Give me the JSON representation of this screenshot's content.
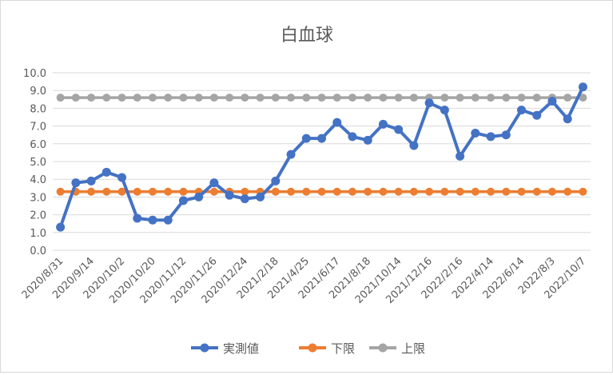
{
  "chart_data": {
    "type": "line",
    "title": "白血球",
    "xlabel": "",
    "ylabel": "",
    "ylim": [
      0,
      10
    ],
    "yticks": [
      "0.0",
      "1.0",
      "2.0",
      "3.0",
      "4.0",
      "5.0",
      "6.0",
      "7.0",
      "8.0",
      "9.0",
      "10.0"
    ],
    "x_tick_labels": [
      "2020/8/31",
      "2020/9/14",
      "2020/10/2",
      "2020/10/20",
      "2020/11/12",
      "2020/11/26",
      "2020/12/24",
      "2021/2/18",
      "2021/4/25",
      "2021/6/17",
      "2021/8/18",
      "2021/10/14",
      "2021/12/16",
      "2022/2/16",
      "2022/4/14",
      "2022/6/14",
      "2022/8/3",
      "2022/10/7"
    ],
    "x_tick_every": 2,
    "grid": true,
    "legend_position": "bottom",
    "series": [
      {
        "name": "実測値",
        "color": "#4472C4",
        "values": [
          1.3,
          3.8,
          3.9,
          4.4,
          4.1,
          1.8,
          1.7,
          1.7,
          2.8,
          3.0,
          3.8,
          3.1,
          2.9,
          3.0,
          3.9,
          5.4,
          6.3,
          6.3,
          7.2,
          6.4,
          6.2,
          7.1,
          6.8,
          5.9,
          8.3,
          7.9,
          5.3,
          6.6,
          6.4,
          6.5,
          7.9,
          7.6,
          8.4,
          7.4,
          9.2
        ]
      },
      {
        "name": "下限",
        "color": "#ED7D31",
        "values": [
          3.3,
          3.3,
          3.3,
          3.3,
          3.3,
          3.3,
          3.3,
          3.3,
          3.3,
          3.3,
          3.3,
          3.3,
          3.3,
          3.3,
          3.3,
          3.3,
          3.3,
          3.3,
          3.3,
          3.3,
          3.3,
          3.3,
          3.3,
          3.3,
          3.3,
          3.3,
          3.3,
          3.3,
          3.3,
          3.3,
          3.3,
          3.3,
          3.3,
          3.3,
          3.3
        ]
      },
      {
        "name": "上限",
        "color": "#A5A5A5",
        "values": [
          8.6,
          8.6,
          8.6,
          8.6,
          8.6,
          8.6,
          8.6,
          8.6,
          8.6,
          8.6,
          8.6,
          8.6,
          8.6,
          8.6,
          8.6,
          8.6,
          8.6,
          8.6,
          8.6,
          8.6,
          8.6,
          8.6,
          8.6,
          8.6,
          8.6,
          8.6,
          8.6,
          8.6,
          8.6,
          8.6,
          8.6,
          8.6,
          8.6,
          8.6,
          8.6
        ]
      }
    ]
  }
}
